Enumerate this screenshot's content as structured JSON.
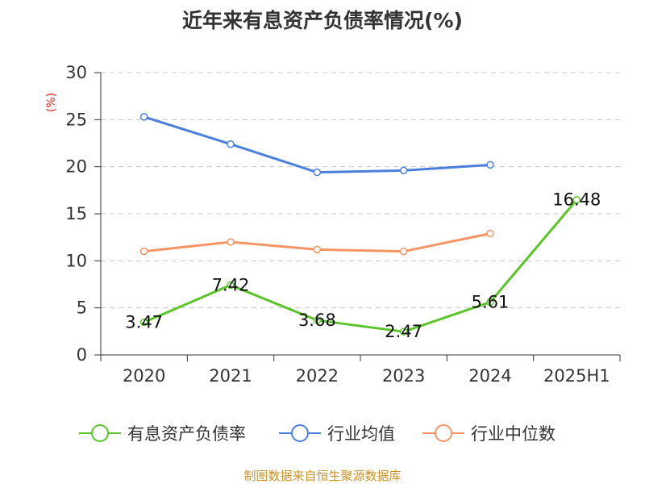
{
  "chart_data": {
    "type": "line",
    "title": "近年来有息资产负债率情况(%)",
    "ylabel": "(%)",
    "categories": [
      "2020",
      "2021",
      "2022",
      "2023",
      "2024",
      "2025H1"
    ],
    "ylim": [
      0,
      30
    ],
    "yticks": [
      0,
      5,
      10,
      15,
      20,
      25,
      30
    ],
    "grid": true,
    "legend_position": "bottom",
    "series": [
      {
        "name": "有息资产负债率",
        "color": "#5cc42b",
        "labeled": true,
        "values": [
          3.47,
          7.42,
          3.68,
          2.47,
          5.61,
          16.48
        ],
        "labels": [
          "3.47",
          "7.42",
          "3.68",
          "2.47",
          "5.61",
          "16.48"
        ]
      },
      {
        "name": "行业均值",
        "color": "#4a7fdc",
        "labeled": false,
        "values": [
          25.3,
          22.4,
          19.4,
          19.6,
          20.2,
          null
        ]
      },
      {
        "name": "行业中位数",
        "color": "#f59566",
        "labeled": false,
        "values": [
          11.0,
          12.0,
          11.2,
          11.0,
          12.9,
          null
        ]
      }
    ]
  },
  "footer": {
    "source": "制图数据来自恒生聚源数据库"
  }
}
